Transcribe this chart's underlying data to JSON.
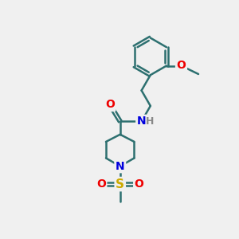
{
  "bg_color": "#f0f0f0",
  "bond_color": "#2d7070",
  "bond_lw": 1.8,
  "atom_colors": {
    "O": "#ee0000",
    "N": "#0000dd",
    "S": "#ccaa00",
    "H": "#888888"
  },
  "fig_w": 3.0,
  "fig_h": 3.0,
  "dpi": 100,
  "xlim": [
    0,
    10
  ],
  "ylim": [
    0,
    10
  ]
}
